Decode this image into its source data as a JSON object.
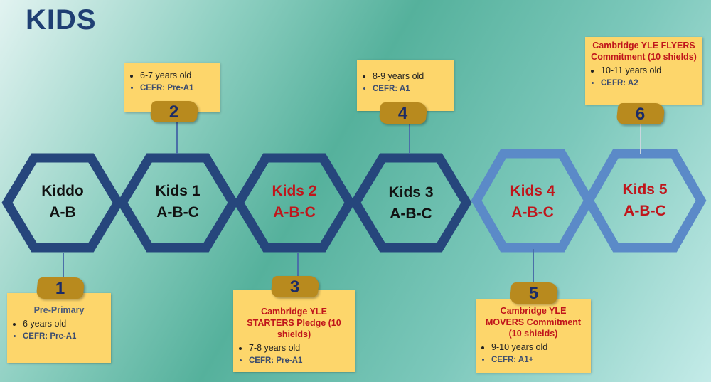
{
  "title": "KIDS",
  "colors": {
    "dark_hex": "#26467c",
    "light_hex": "#5b8ac8",
    "note": "#fdd66b",
    "badge": "#b88a1e",
    "red": "#c0151b"
  },
  "levels": [
    {
      "name": "Kiddo",
      "sub": "A-B",
      "color": "dark"
    },
    {
      "name": "Kids 1",
      "sub": "A-B-C",
      "color": "dark"
    },
    {
      "name": "Kids 2",
      "sub": "A-B-C",
      "color": "red"
    },
    {
      "name": "Kids 3",
      "sub": "A-B-C",
      "color": "dark"
    },
    {
      "name": "Kids 4",
      "sub": "A-B-C",
      "color": "red"
    },
    {
      "name": "Kids 5",
      "sub": "A-B-C",
      "color": "red"
    }
  ],
  "notes": [
    {
      "number": "1",
      "heading": "Pre-Primary",
      "age": "6 years old",
      "cefr": "CEFR: Pre-A1"
    },
    {
      "number": "2",
      "heading": "",
      "age": "6-7 years old",
      "cefr": "CEFR: Pre-A1"
    },
    {
      "number": "3",
      "heading": "Cambridge YLE STARTERS Pledge (10 shields)",
      "age": "7-8 years old",
      "cefr": "CEFR: Pre-A1"
    },
    {
      "number": "4",
      "heading": "",
      "age": "8-9 years old",
      "cefr": "CEFR: A1"
    },
    {
      "number": "5",
      "heading": "Cambridge YLE MOVERS Commitment (10 shields)",
      "age": "9-10 years old",
      "cefr": "CEFR: A1+"
    },
    {
      "number": "6",
      "heading": "Cambridge YLE FLYERS Commitment (10 shields)",
      "age": "10-11 years old",
      "cefr": "CEFR: A2"
    }
  ]
}
